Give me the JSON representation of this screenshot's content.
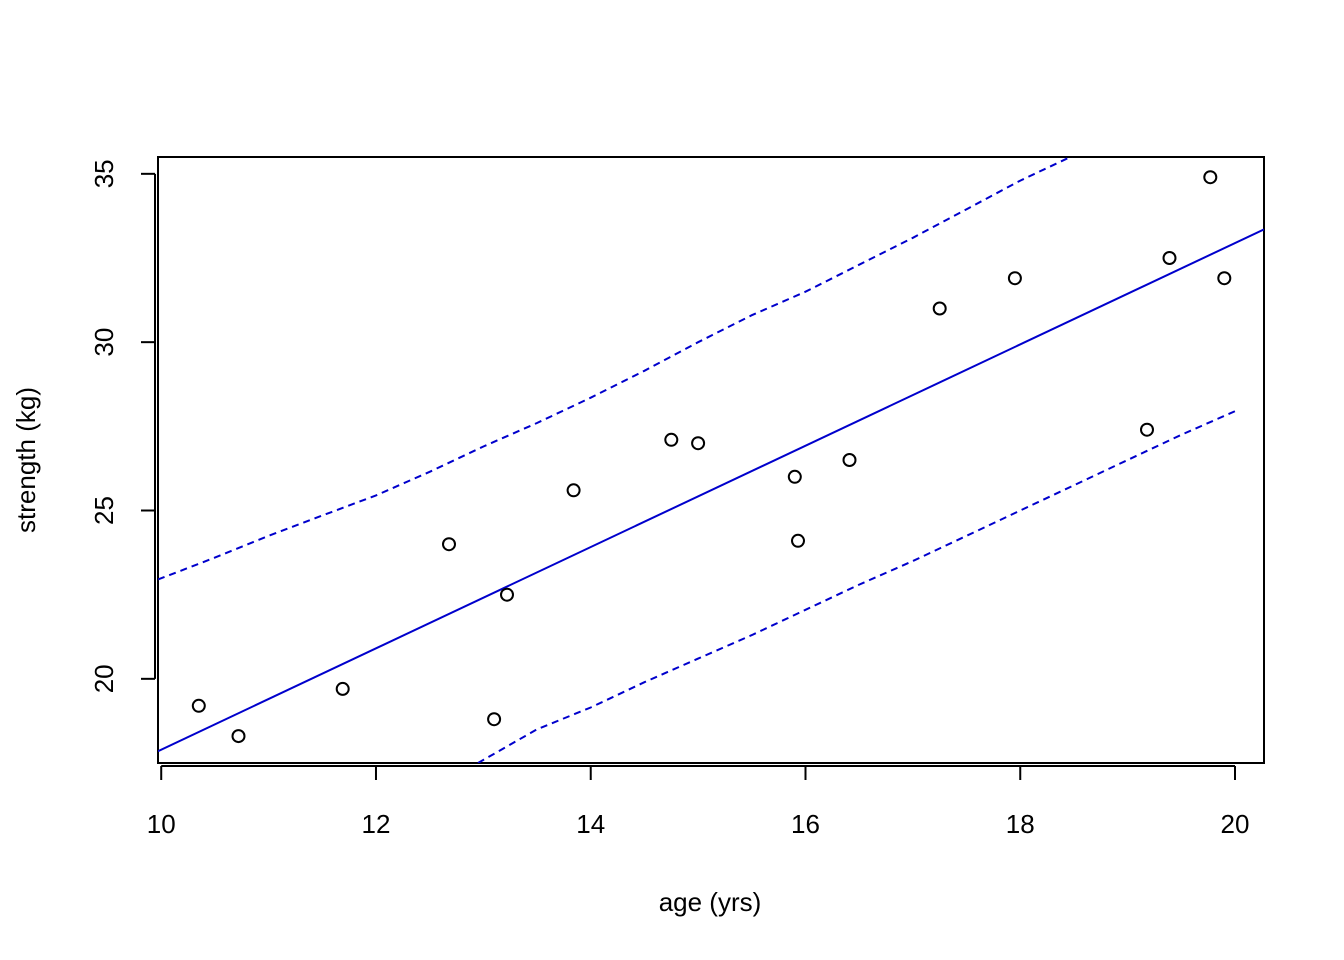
{
  "chart_data": {
    "type": "scatter",
    "xlabel": "age (yrs)",
    "ylabel": "strength (kg)",
    "xlim": [
      9.97,
      20.27
    ],
    "ylim": [
      17.5,
      35.5
    ],
    "x_ticks": [
      10,
      12,
      14,
      16,
      18,
      20
    ],
    "y_ticks": [
      20,
      25,
      30,
      35
    ],
    "x_tick_labels": [
      "10",
      "12",
      "14",
      "16",
      "18",
      "20"
    ],
    "y_tick_labels": [
      "20",
      "25",
      "30",
      "35"
    ],
    "grid": false,
    "points": {
      "x": [
        10.35,
        10.72,
        11.69,
        12.68,
        13.1,
        13.22,
        13.84,
        14.75,
        15.0,
        15.9,
        15.93,
        16.41,
        17.25,
        17.95,
        19.18,
        19.39,
        19.77,
        19.9
      ],
      "y": [
        19.2,
        18.3,
        19.7,
        24.0,
        18.8,
        22.5,
        25.6,
        27.1,
        27.0,
        26.0,
        24.1,
        26.5,
        31.0,
        31.9,
        27.4,
        32.5,
        34.9,
        31.9
      ],
      "marker": "open-circle",
      "color": "#000000"
    },
    "fit_line": {
      "x": [
        9.97,
        20.27
      ],
      "y": [
        17.85,
        33.35
      ],
      "color": "#0000cc",
      "style": "solid"
    },
    "upper_band": {
      "x": [
        9.97,
        10.5,
        11.0,
        11.5,
        12.0,
        12.5,
        13.0,
        13.5,
        14.0,
        14.5,
        15.0,
        15.5,
        16.0,
        16.5,
        17.0,
        17.5,
        18.0,
        18.5
      ],
      "y": [
        22.95,
        23.6,
        24.25,
        24.85,
        25.45,
        26.15,
        26.9,
        27.6,
        28.35,
        29.15,
        30.0,
        30.8,
        31.5,
        32.3,
        33.1,
        33.95,
        34.8,
        35.55
      ],
      "color": "#0000cc",
      "style": "dashed"
    },
    "lower_band": {
      "x": [
        12.95,
        13.5,
        14.0,
        14.5,
        15.0,
        15.5,
        16.0,
        16.5,
        17.0,
        17.5,
        18.0,
        18.5,
        19.0,
        19.5,
        20.0
      ],
      "y": [
        17.5,
        18.5,
        19.15,
        19.9,
        20.6,
        21.3,
        22.05,
        22.8,
        23.5,
        24.25,
        25.0,
        25.75,
        26.5,
        27.25,
        27.95
      ],
      "color": "#0000cc",
      "style": "dashed"
    }
  }
}
